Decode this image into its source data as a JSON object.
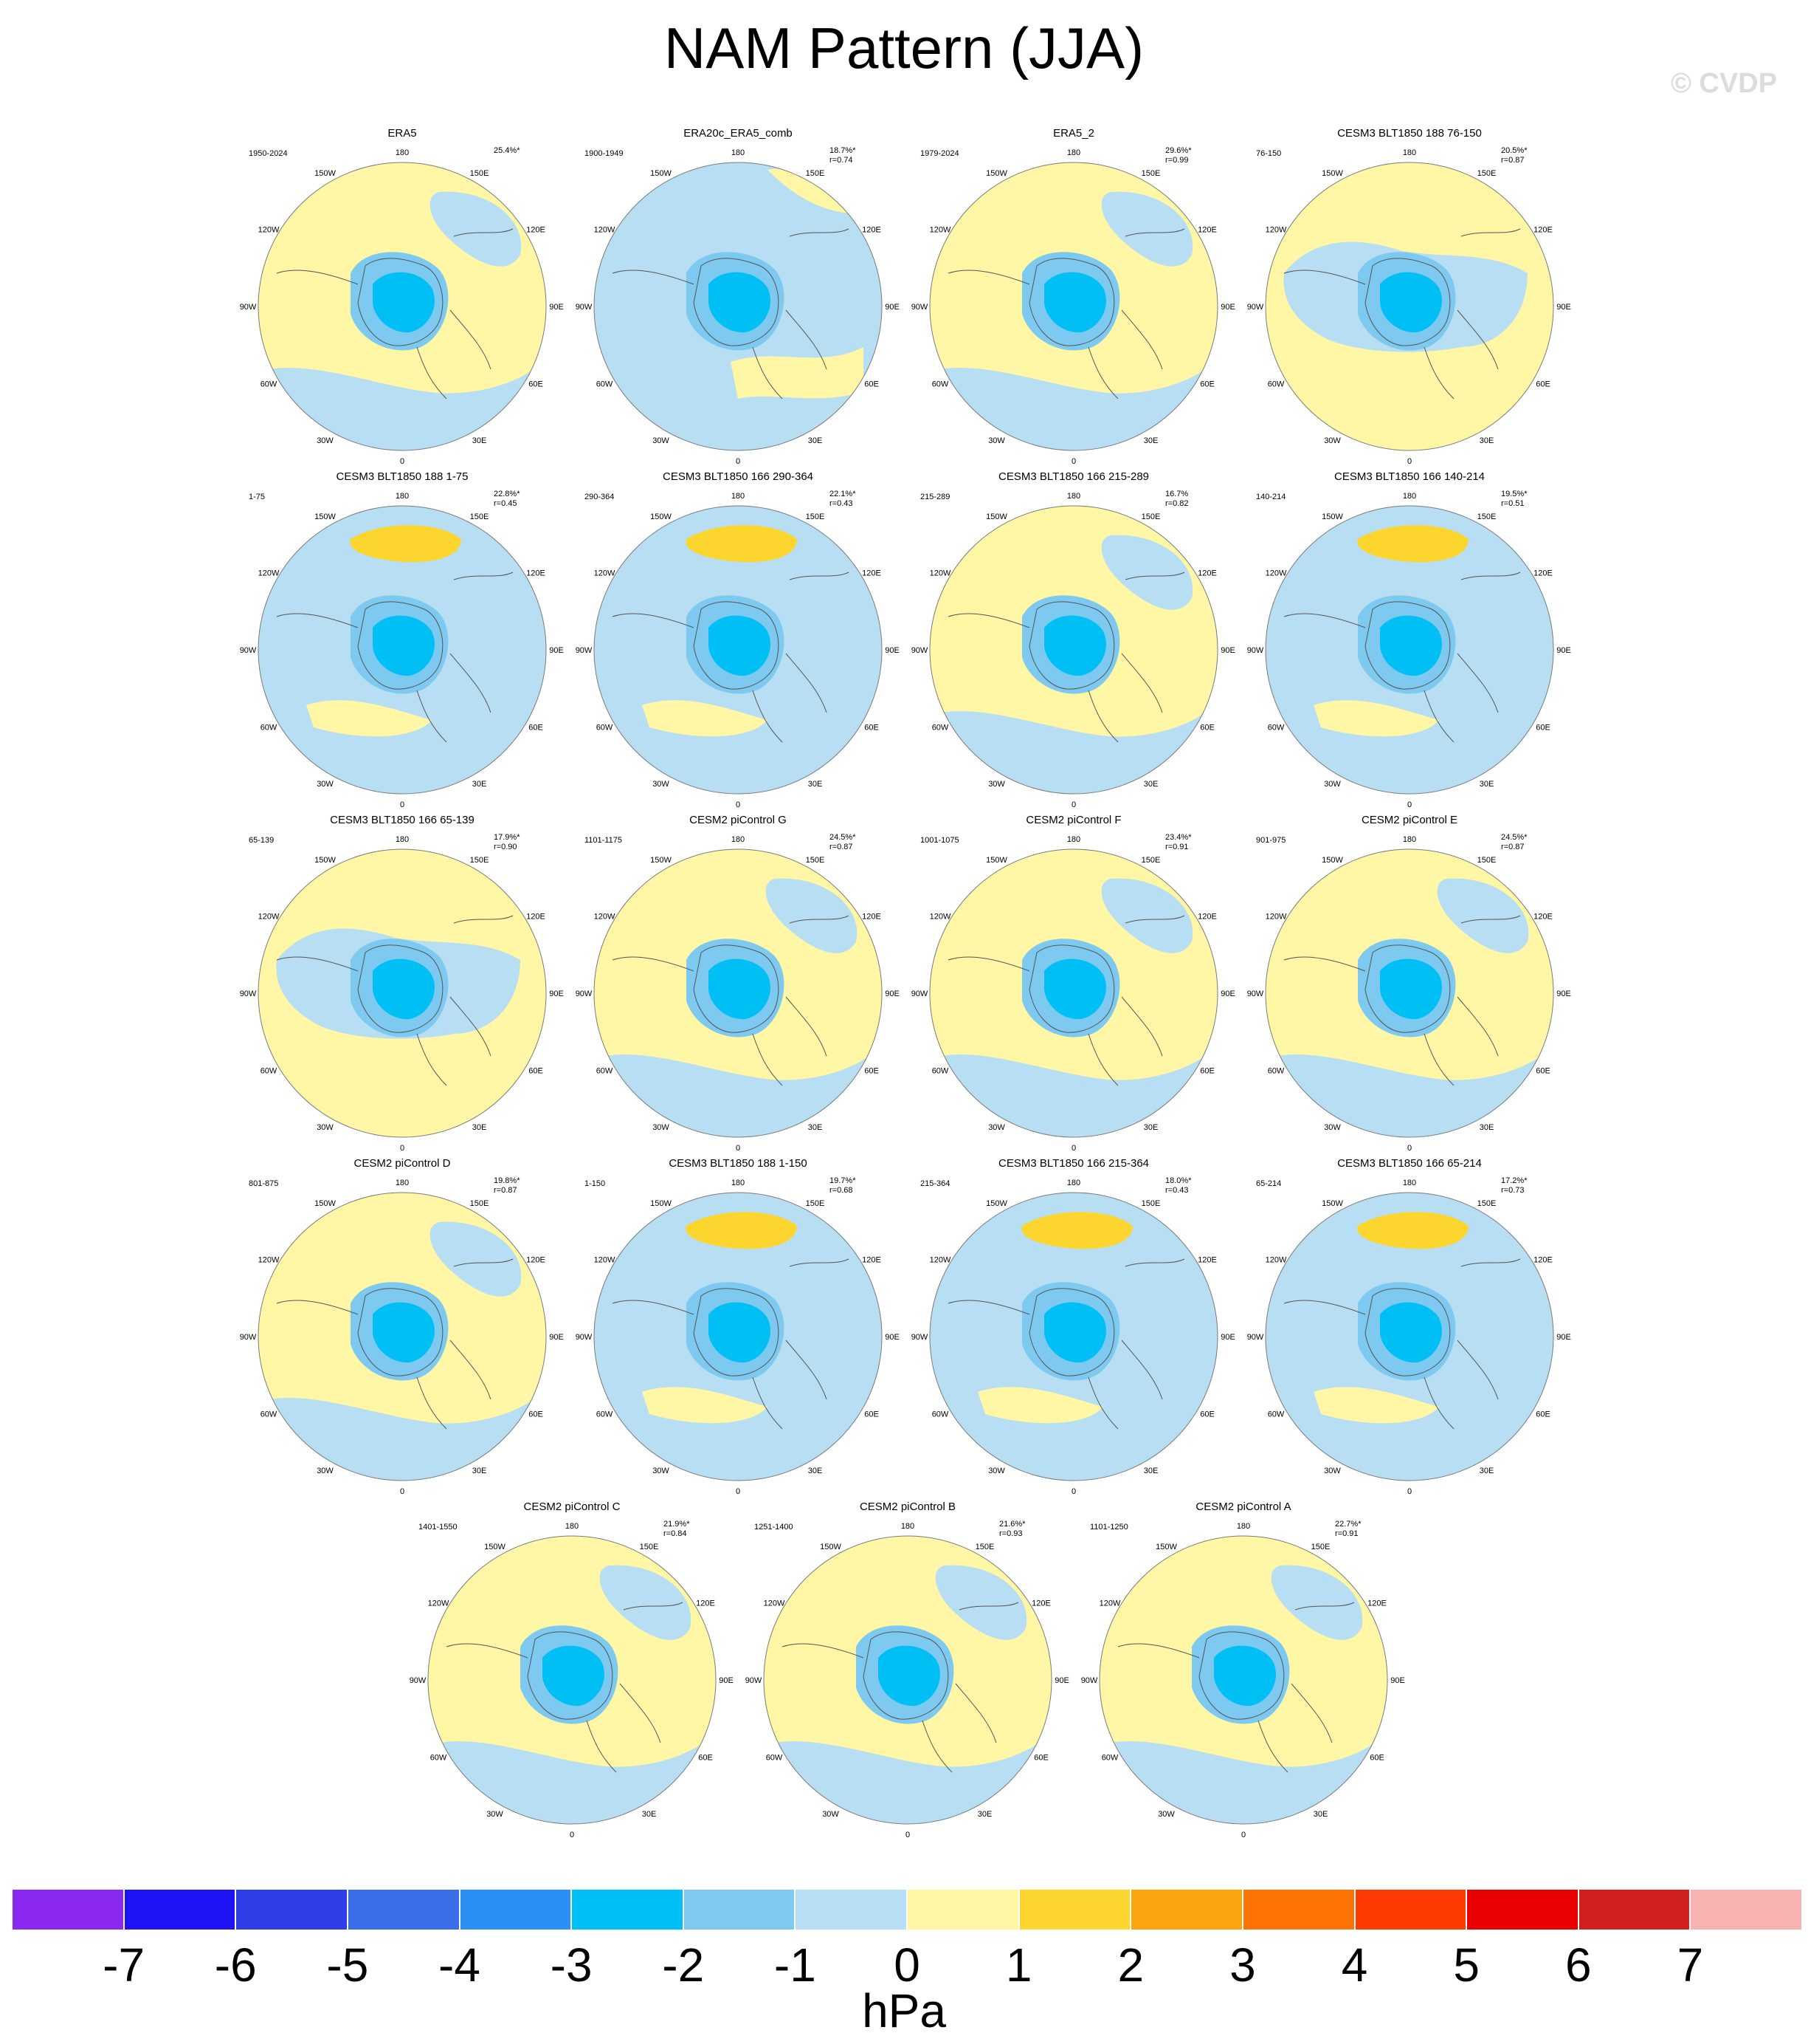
{
  "title": "NAM Pattern (JJA)",
  "credit": "© CVDP",
  "longitude_labels": [
    "180",
    "150E",
    "120E",
    "90E",
    "60E",
    "30E",
    "0",
    "30W",
    "60W",
    "90W",
    "120W",
    "150W"
  ],
  "colorbar": {
    "unit": "hPa",
    "tick_labels": [
      "-7",
      "-6",
      "-5",
      "-4",
      "-3",
      "-2",
      "-1",
      "0",
      "1",
      "2",
      "3",
      "4",
      "5",
      "6",
      "7"
    ],
    "colors": [
      "#8b28f0",
      "#1f12f5",
      "#2e3fe8",
      "#3a6ee8",
      "#2b90f5",
      "#00bff5",
      "#7dc9f0",
      "#b7def2",
      "#fff7a6",
      "#fdd52f",
      "#fca60f",
      "#fd7304",
      "#fd3b02",
      "#e90102",
      "#d11f1f",
      "#f9b2b2"
    ]
  },
  "palette": {
    "land_outline": "#555555",
    "circle_outline": "#7a7a7a"
  },
  "panels": [
    {
      "title": "ERA5",
      "period": "1950-2024",
      "pct": "25.4%*",
      "r": "",
      "variant": 0
    },
    {
      "title": "ERA20c_ERA5_comb",
      "period": "1900-1949",
      "pct": "18.7%*",
      "r": "r=0.74",
      "variant": 1
    },
    {
      "title": "ERA5_2",
      "period": "1979-2024",
      "pct": "29.6%*",
      "r": "r=0.99",
      "variant": 0
    },
    {
      "title": "CESM3 BLT1850 188 76-150",
      "period": "76-150",
      "pct": "20.5%*",
      "r": "r=0.87",
      "variant": 2
    },
    {
      "title": "CESM3 BLT1850 188 1-75",
      "period": "1-75",
      "pct": "22.8%*",
      "r": "r=0.45",
      "variant": 3
    },
    {
      "title": "CESM3 BLT1850 166 290-364",
      "period": "290-364",
      "pct": "22.1%*",
      "r": "r=0.43",
      "variant": 3
    },
    {
      "title": "CESM3 BLT1850 166 215-289",
      "period": "215-289",
      "pct": "16.7%",
      "r": "r=0.82",
      "variant": 0
    },
    {
      "title": "CESM3 BLT1850 166 140-214",
      "period": "140-214",
      "pct": "19.5%*",
      "r": "r=0.51",
      "variant": 3
    },
    {
      "title": "CESM3 BLT1850 166 65-139",
      "period": "65-139",
      "pct": "17.9%*",
      "r": "r=0.90",
      "variant": 2
    },
    {
      "title": "CESM2 piControl G",
      "period": "1101-1175",
      "pct": "24.5%*",
      "r": "r=0.87",
      "variant": 0
    },
    {
      "title": "CESM2 piControl F",
      "period": "1001-1075",
      "pct": "23.4%*",
      "r": "r=0.91",
      "variant": 0
    },
    {
      "title": "CESM2 piControl E",
      "period": "901-975",
      "pct": "24.5%*",
      "r": "r=0.87",
      "variant": 0
    },
    {
      "title": "CESM2 piControl D",
      "period": "801-875",
      "pct": "19.8%*",
      "r": "r=0.87",
      "variant": 0
    },
    {
      "title": "CESM3 BLT1850 188 1-150",
      "period": "1-150",
      "pct": "19.7%*",
      "r": "r=0.68",
      "variant": 3
    },
    {
      "title": "CESM3 BLT1850 166 215-364",
      "period": "215-364",
      "pct": "18.0%*",
      "r": "r=0.43",
      "variant": 3
    },
    {
      "title": "CESM3 BLT1850 166 65-214",
      "period": "65-214",
      "pct": "17.2%*",
      "r": "r=0.73",
      "variant": 3
    },
    {
      "title": "CESM2 piControl C",
      "period": "1401-1550",
      "pct": "21.9%*",
      "r": "r=0.84",
      "variant": 0
    },
    {
      "title": "CESM2 piControl B",
      "period": "1251-1400",
      "pct": "21.6%*",
      "r": "r=0.93",
      "variant": 0
    },
    {
      "title": "CESM2 piControl A",
      "period": "1101-1250",
      "pct": "22.7%*",
      "r": "r=0.91",
      "variant": 0
    }
  ]
}
